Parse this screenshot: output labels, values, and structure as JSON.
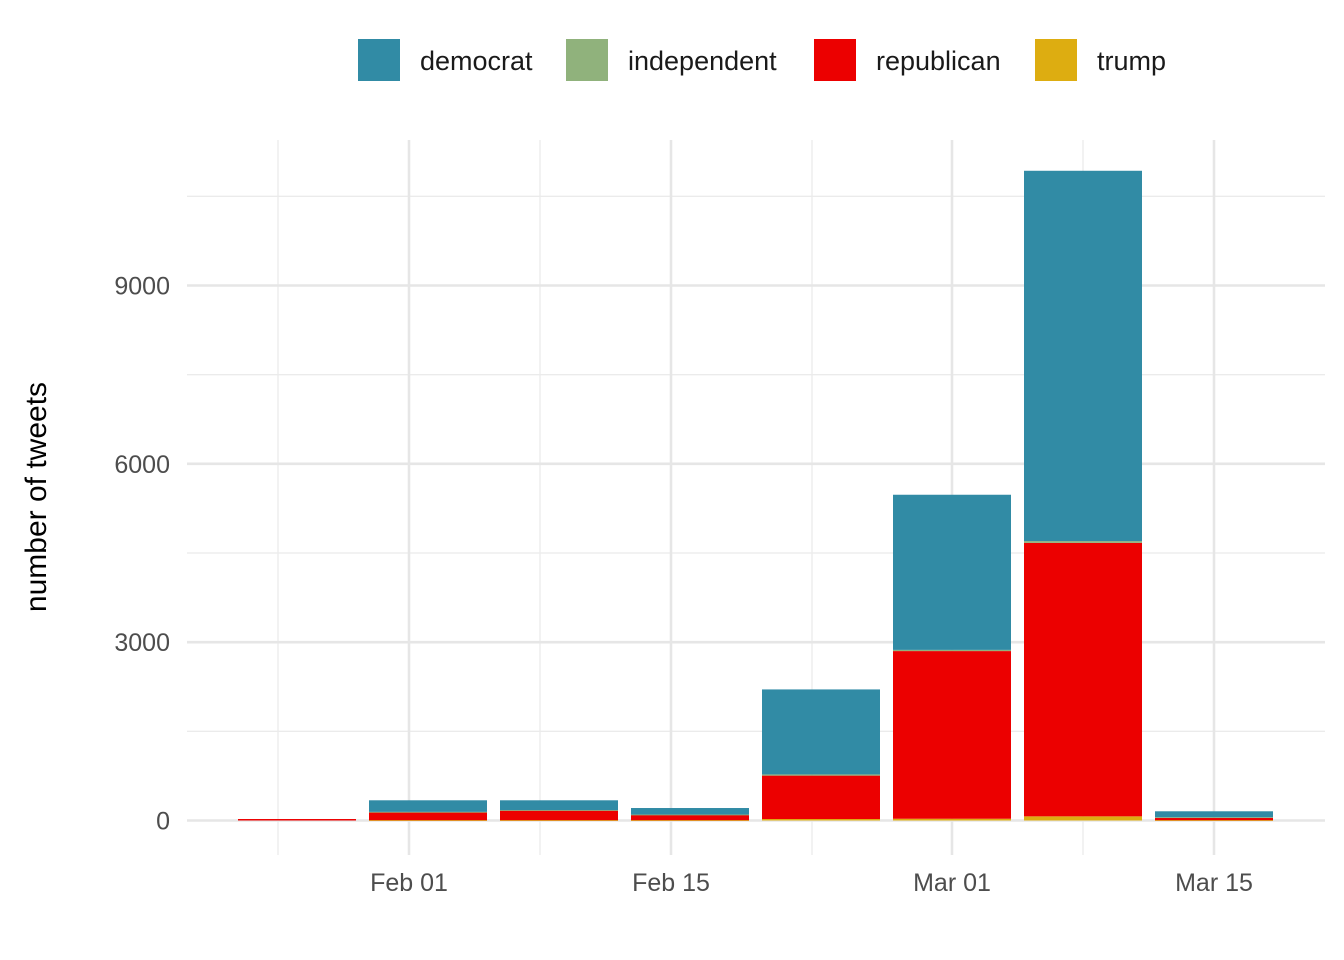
{
  "chart_data": {
    "type": "bar",
    "stacked": true,
    "xlabel": "",
    "ylabel": "number of tweets",
    "ylim": [
      0,
      11300
    ],
    "y_ticks": [
      0,
      3000,
      6000,
      9000
    ],
    "y_tick_labels": [
      "0",
      "3000",
      "6000",
      "9000"
    ],
    "x_ticks": [
      "Feb 01",
      "Feb 15",
      "Mar 01",
      "Mar 15"
    ],
    "categories": [
      "Jan 25",
      "Feb 01",
      "Feb 08",
      "Feb 15",
      "Feb 22",
      "Mar 01",
      "Mar 08",
      "Mar 15"
    ],
    "series": [
      {
        "name": "trump",
        "color": "#DDAD11",
        "values": [
          0,
          5,
          5,
          5,
          25,
          30,
          70,
          5
        ]
      },
      {
        "name": "republican",
        "color": "#EC0000",
        "values": [
          25,
          135,
          165,
          90,
          730,
          2820,
          4600,
          45
        ]
      },
      {
        "name": "independent",
        "color": "#90B27C",
        "values": [
          0,
          5,
          5,
          5,
          20,
          20,
          30,
          5
        ]
      },
      {
        "name": "democrat",
        "color": "#318BA5",
        "values": [
          0,
          195,
          165,
          110,
          1430,
          2610,
          6230,
          100
        ]
      }
    ],
    "legend": {
      "position": "top",
      "order": [
        "democrat",
        "independent",
        "republican",
        "trump"
      ]
    },
    "grid": true
  }
}
